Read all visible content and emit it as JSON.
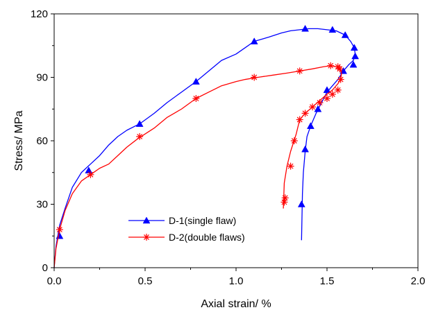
{
  "chart_data": {
    "type": "line",
    "xlabel": "Axial strain/ %",
    "ylabel": "Stress/ MPa",
    "xlim": [
      0,
      2.0
    ],
    "ylim": [
      0,
      120
    ],
    "x_ticks": [
      "0.0",
      "0.5",
      "1.0",
      "1.5",
      "2.0"
    ],
    "y_ticks": [
      "0",
      "30",
      "60",
      "90",
      "120"
    ],
    "grid": false,
    "legend_position": "bottom-center",
    "series": [
      {
        "name": "D-1(single flaw)",
        "color": "#0000ff",
        "marker": "triangle",
        "x": [
          0.0,
          0.01,
          0.03,
          0.06,
          0.1,
          0.15,
          0.2,
          0.25,
          0.3,
          0.35,
          0.4,
          0.47,
          0.55,
          0.62,
          0.7,
          0.78,
          0.85,
          0.92,
          1.0,
          1.05,
          1.1,
          1.18,
          1.25,
          1.3,
          1.35,
          1.4,
          1.45,
          1.5,
          1.55,
          1.6,
          1.63,
          1.65,
          1.655,
          1.645,
          1.62,
          1.59,
          1.56,
          1.53,
          1.5,
          1.47,
          1.44,
          1.41,
          1.39,
          1.38,
          1.37,
          1.365,
          1.36
        ],
        "y": [
          0,
          10,
          20,
          28,
          38,
          45,
          49,
          53,
          58,
          62,
          65,
          68,
          73,
          78,
          83,
          88,
          93,
          98,
          101,
          104,
          107,
          109,
          111,
          112,
          112.5,
          113,
          113,
          112.5,
          112,
          110,
          107,
          104,
          101,
          98,
          96,
          93,
          89,
          86,
          83,
          78,
          73,
          67,
          62,
          55,
          45,
          35,
          13
        ],
        "marker_x": [
          0.03,
          0.19,
          0.47,
          0.78,
          1.1,
          1.38,
          1.53,
          1.6,
          1.65,
          1.655,
          1.645,
          1.59,
          1.5,
          1.45,
          1.41,
          1.38,
          1.36
        ],
        "marker_y": [
          15,
          46,
          68,
          88,
          107,
          113,
          112.5,
          110,
          104,
          100,
          96,
          93,
          84,
          75,
          67,
          56,
          30
        ]
      },
      {
        "name": "D-2(double flaws)",
        "color": "#ff0000",
        "marker": "asterisk",
        "x": [
          0.0,
          0.01,
          0.03,
          0.06,
          0.1,
          0.15,
          0.2,
          0.25,
          0.3,
          0.35,
          0.4,
          0.46,
          0.55,
          0.62,
          0.7,
          0.78,
          0.85,
          0.92,
          1.0,
          1.05,
          1.12,
          1.2,
          1.28,
          1.35,
          1.42,
          1.48,
          1.52,
          1.55,
          1.57,
          1.58,
          1.575,
          1.56,
          1.53,
          1.5,
          1.46,
          1.42,
          1.38,
          1.35,
          1.33,
          1.3,
          1.28,
          1.265,
          1.26
        ],
        "y": [
          0,
          9,
          18,
          27,
          35,
          41,
          44,
          47,
          49,
          53,
          57,
          61,
          66,
          71,
          75,
          80,
          83,
          86,
          88,
          89,
          90,
          91,
          92,
          93,
          94,
          95,
          95.5,
          95,
          94,
          92,
          89,
          87,
          84,
          82,
          79,
          76,
          73,
          70,
          63,
          55,
          48,
          40,
          28
        ],
        "marker_x": [
          0.03,
          0.2,
          0.47,
          0.78,
          1.1,
          1.35,
          1.52,
          1.56,
          1.57,
          1.575,
          1.56,
          1.53,
          1.5,
          1.46,
          1.42,
          1.38,
          1.35,
          1.32,
          1.3,
          1.27,
          1.265
        ],
        "marker_y": [
          18,
          44,
          62,
          80,
          90,
          93,
          95.5,
          95,
          94,
          89,
          84,
          82,
          80,
          78,
          76,
          73,
          70,
          60,
          48,
          33,
          31
        ]
      }
    ]
  }
}
